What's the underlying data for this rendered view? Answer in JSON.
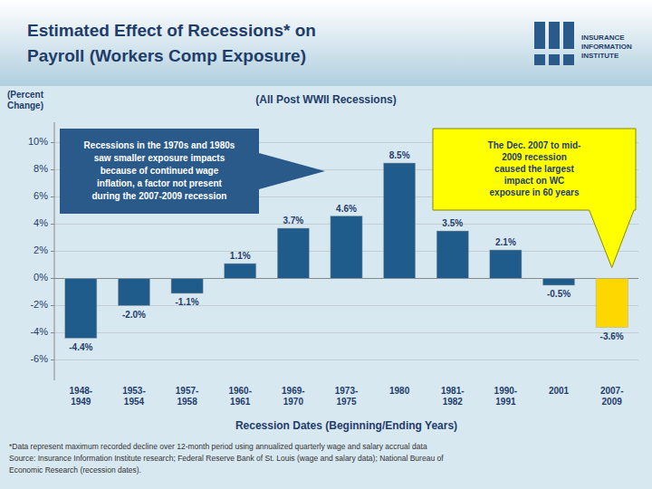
{
  "chart_data": {
    "type": "bar",
    "title": "Estimated Effect of Recessions* on\nPayroll (Workers Comp Exposure)",
    "subtitle": "(All Post WWII Recessions)",
    "xlabel": "Recession Dates (Beginning/Ending Years)",
    "ylabel": "(Percent\nChange)",
    "categories": [
      "1948-\n1949",
      "1953-\n1954",
      "1957-\n1958",
      "1960-\n1961",
      "1969-\n1970",
      "1973-\n1975",
      "1980",
      "1981-\n1982",
      "1990-\n1991",
      "2001",
      "2007-\n2009"
    ],
    "values": [
      -4.4,
      -2.0,
      -1.1,
      1.1,
      3.7,
      4.6,
      8.5,
      3.5,
      2.1,
      -0.5,
      -3.6
    ],
    "value_labels": [
      "-4.4%",
      "-2.0%",
      "-1.1%",
      "1.1%",
      "3.7%",
      "4.6%",
      "8.5%",
      "3.5%",
      "2.1%",
      "-0.5%",
      "-3.6%"
    ],
    "colors": [
      "#1F5C8B",
      "#1F5C8B",
      "#1F5C8B",
      "#1F5C8B",
      "#1F5C8B",
      "#1F5C8B",
      "#1F5C8B",
      "#1F5C8B",
      "#1F5C8B",
      "#1F5C8B",
      "#FFD700"
    ],
    "data_labels": true,
    "grid": true,
    "ylim": [
      -7.5,
      11.5
    ],
    "yticks": [
      {
        "value": -6,
        "label": "-6%"
      },
      {
        "value": -4,
        "label": "-4%"
      },
      {
        "value": -2,
        "label": "-2%"
      },
      {
        "value": 0,
        "label": "0%"
      },
      {
        "value": 2,
        "label": "2%"
      },
      {
        "value": 4,
        "label": "4%"
      },
      {
        "value": 6,
        "label": "6%"
      },
      {
        "value": 8,
        "label": "8%"
      },
      {
        "value": 10,
        "label": "10%"
      }
    ],
    "annotations": [
      "Recessions in the 1970s and 1980s\nsaw smaller exposure impacts\nbecause of continued wage\ninflation, a factor not present\nduring the 2007-2009 recession",
      "The Dec. 2007 to mid-\n2009 recession\ncaused the largest\nimpact on WC\nexposure in 60 years",
      "*Data represent maximum recorded decline over 12-month period using annualized quarterly wage and salary accrual data",
      "Source: Insurance Information Institute research; Federal Reserve Bank of St. Louis (wage and salary data); National Bureau of",
      "Economic Research (recession dates).",
      "INSURANCE\nINFORMATION\nINSTITUTE"
    ]
  }
}
